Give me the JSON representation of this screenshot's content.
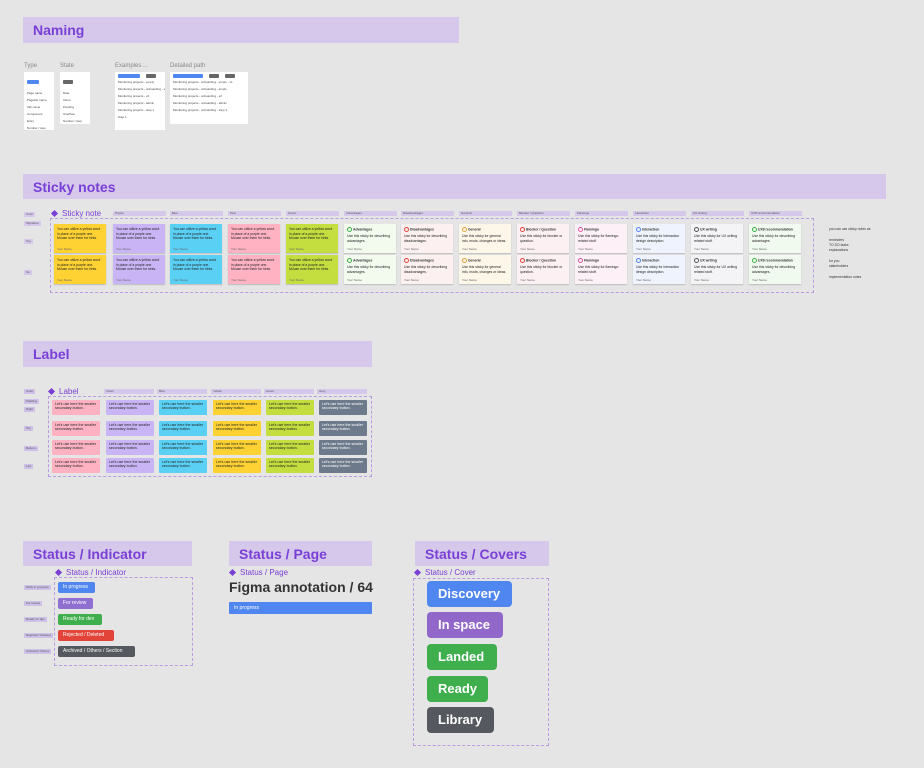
{
  "sections": {
    "naming": "Naming",
    "sticky": "Sticky notes",
    "label": "Label",
    "status_indicator": "Status / Indicator",
    "status_page": "Status / Page",
    "status_covers": "Status / Covers"
  },
  "naming": {
    "type_header": "Type",
    "state_header": "State",
    "examples_header": "Examples ...",
    "path_header": "Detailed path",
    "type_rows": [
      "Page name",
      "Pagebar name",
      "Tab name",
      "Component",
      "Entry",
      "Number / step"
    ],
    "state_rows": [
      "Date",
      "Intero",
      "Pending",
      "Overflow",
      "Number / step"
    ],
    "example_rows": [
      "Monitoring projects - empty",
      "Monitoring projects - onboarding - empty",
      "Monitoring projects - v2",
      "Monitoring projects - admin",
      "Monitoring projects - step 1",
      "Step 1"
    ],
    "path_rows": [
      "Monitoring projects - onboarding - empty - v1",
      "Monitoring projects - onboarding - empty",
      "Monitoring projects - onboarding - v2",
      "Monitoring projects - onboarding - admin",
      "Monitoring projects - onboarding - step 1"
    ]
  },
  "sticky": {
    "component_label": "Sticky note",
    "col_headers": [
      "Color",
      "Purple",
      "Blue",
      "Pink",
      "Green",
      "Advantages",
      "Disadvantages",
      "General",
      "Blocker / Question",
      "Flamingo",
      "Interaction",
      "UX writing",
      "UX8 recommendation"
    ],
    "row_labels": [
      "Color",
      "Signature",
      "Top",
      "No"
    ],
    "body": "You can utilize a yellow word in place of a purple one. Mouse over them for hints.",
    "author": "Your Name",
    "cards": [
      {
        "title": "Advantages",
        "body": "Use this sticky for describing advantages."
      },
      {
        "title": "Disadvantages",
        "body": "Use this sticky for describing disadvantages."
      },
      {
        "title": "General",
        "body": "Use this sticky for general info, mods, changes or ideas."
      },
      {
        "title": "Blocker / Question",
        "body": "Use this sticky for blocker or question."
      },
      {
        "title": "Flamingo",
        "body": "Use this sticky for flamingo related stuff."
      },
      {
        "title": "Interaction",
        "body": "Use this sticky for interaction design description."
      },
      {
        "title": "UX writing",
        "body": "Use this sticky for UX writing related stuff."
      },
      {
        "title": "UX8 recommendation",
        "body": "Use this sticky for describing advantages."
      }
    ],
    "side_notes": [
      "you can use sticky notes as",
      "reminders",
      "TO DO tasks",
      "explanations",
      "for you",
      "stakeholders",
      "implementation notes"
    ]
  },
  "label": {
    "component_label": "Label",
    "col_headers": [
      "Color",
      "Violet",
      "Blue",
      "Yellow",
      "Green",
      "Grey"
    ],
    "row_labels": [
      "Color",
      "Padding",
      "Right",
      "Top",
      "Bottom",
      "Left"
    ],
    "text": "Let's use here the smaller secondary button."
  },
  "status_indicator": {
    "component_label": "Status / Indicator",
    "row_labels": [
      "Work in progress",
      "For review",
      "Ready for dev",
      "Rejected / Deleted",
      "Archived / Others"
    ],
    "pills": [
      "In progress",
      "For review",
      "Ready for dev",
      "Rejected / Deleted",
      "Archived / Others / Section"
    ]
  },
  "status_page": {
    "component_label": "Status / Page",
    "title": "Figma annotation / 64",
    "bar_text": "In progress"
  },
  "status_covers": {
    "component_label": "Status / Cover",
    "items": [
      "Discovery",
      "In space",
      "Landed",
      "Ready",
      "Library"
    ]
  },
  "colors": {
    "accent": "#7a3fd6",
    "header_bg": "#d5c8ea",
    "yellow": "#ffd233",
    "purple": "#c9b5f5",
    "blue": "#5bd0f5",
    "pink": "#ffb3c2",
    "green": "#c3de3e",
    "grey": "#6d7a8c",
    "in_progress": "#4f86f0",
    "for_review": "#8f6fd0",
    "ready": "#3fae4d",
    "rejected": "#e2443a",
    "archived": "#55585e",
    "in_space": "#9168c9"
  }
}
